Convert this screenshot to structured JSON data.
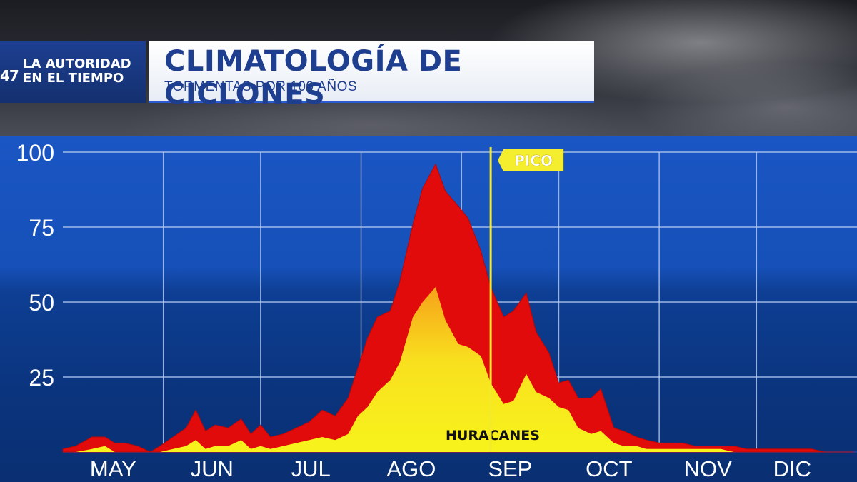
{
  "header": {
    "logo_number": "47",
    "logo_line1": "LA AUTORIDAD",
    "logo_line2": "EN EL TIEMPO",
    "title": "CLIMATOLOGÍA DE CICLONES",
    "subtitle": "TORMENTAS POR 100 AÑOS"
  },
  "colors": {
    "storms": "#e10b0b",
    "hurricanes": "#f7ef1e",
    "peak_line": "#f2ea2a",
    "peak_label_bg": "#f4ee2e",
    "grid": "#b9cdf2",
    "tick_text": "#ffffff"
  },
  "chart_data": {
    "type": "area",
    "title": "CLIMATOLOGÍA DE CICLONES",
    "subtitle": "TORMENTAS POR 100 AÑOS",
    "xlabel": "",
    "ylabel": "",
    "ylim": [
      0,
      100
    ],
    "y_ticks": [
      25,
      50,
      75,
      100
    ],
    "grid": true,
    "x_domain": [
      "05-01",
      "12-31"
    ],
    "month_labels": [
      "MAY",
      "JUN",
      "JUL",
      "AGO",
      "SEP",
      "OCT",
      "NOV",
      "DIC"
    ],
    "month_starts": [
      "05-01",
      "06-01",
      "07-01",
      "08-01",
      "09-01",
      "10-01",
      "11-01",
      "12-01"
    ],
    "series": [
      {
        "name": "",
        "x": [
          "05-01",
          "05-05",
          "05-10",
          "05-14",
          "05-17",
          "05-20",
          "05-24",
          "05-28",
          "05-31",
          "06-04",
          "06-08",
          "06-11",
          "06-14",
          "06-17",
          "06-21",
          "06-25",
          "06-28",
          "07-01",
          "07-04",
          "07-08",
          "07-12",
          "07-16",
          "07-20",
          "07-24",
          "07-28",
          "07-31",
          "08-03",
          "08-06",
          "08-10",
          "08-13",
          "08-17",
          "08-20",
          "08-24",
          "08-27",
          "08-31",
          "09-03",
          "09-07",
          "09-10",
          "09-14",
          "09-17",
          "09-21",
          "09-24",
          "09-28",
          "10-01",
          "10-04",
          "10-07",
          "10-11",
          "10-14",
          "10-18",
          "10-21",
          "10-25",
          "10-28",
          "11-01",
          "11-04",
          "11-08",
          "11-12",
          "11-16",
          "11-20",
          "11-24",
          "11-28",
          "12-02",
          "12-06",
          "12-10",
          "12-14",
          "12-18",
          "12-22",
          "12-26",
          "12-31"
        ],
        "values": [
          1,
          2,
          5,
          5,
          3,
          3,
          2,
          0,
          2,
          5,
          8,
          14,
          7,
          9,
          8,
          11,
          6,
          9,
          5,
          6,
          8,
          10,
          14,
          12,
          18,
          28,
          38,
          45,
          47,
          57,
          76,
          88,
          96,
          87,
          82,
          78,
          67,
          55,
          45,
          47,
          53,
          40,
          33,
          23,
          24,
          18,
          18,
          21,
          8,
          7,
          5,
          4,
          3,
          3,
          3,
          2,
          2,
          2,
          2,
          1,
          1,
          1,
          1,
          1,
          1,
          0,
          0,
          0
        ]
      },
      {
        "name": "HURACANES",
        "x": [
          "05-01",
          "05-05",
          "05-10",
          "05-14",
          "05-17",
          "05-20",
          "05-24",
          "05-28",
          "05-31",
          "06-04",
          "06-08",
          "06-11",
          "06-14",
          "06-17",
          "06-21",
          "06-25",
          "06-28",
          "07-01",
          "07-04",
          "07-08",
          "07-12",
          "07-16",
          "07-20",
          "07-24",
          "07-28",
          "07-31",
          "08-03",
          "08-06",
          "08-10",
          "08-13",
          "08-17",
          "08-20",
          "08-24",
          "08-27",
          "08-31",
          "09-03",
          "09-07",
          "09-10",
          "09-14",
          "09-17",
          "09-21",
          "09-24",
          "09-28",
          "10-01",
          "10-04",
          "10-07",
          "10-11",
          "10-14",
          "10-18",
          "10-21",
          "10-25",
          "10-28",
          "11-01",
          "11-04",
          "11-08",
          "11-12",
          "11-16",
          "11-20",
          "11-24",
          "11-28",
          "12-02",
          "12-06",
          "12-10",
          "12-14",
          "12-18",
          "12-22",
          "12-26",
          "12-31"
        ],
        "values": [
          0,
          0,
          1,
          2,
          0,
          0,
          0,
          0,
          0,
          1,
          2,
          4,
          1,
          2,
          2,
          4,
          1,
          2,
          1,
          2,
          3,
          4,
          5,
          4,
          6,
          12,
          15,
          20,
          24,
          30,
          45,
          50,
          55,
          44,
          36,
          35,
          32,
          23,
          16,
          17,
          26,
          20,
          18,
          15,
          14,
          8,
          6,
          7,
          3,
          2,
          2,
          1,
          1,
          1,
          1,
          1,
          1,
          1,
          0,
          0,
          0,
          0,
          0,
          0,
          0,
          0,
          0,
          0
        ]
      }
    ],
    "annotations": [
      {
        "text": "PICO",
        "x": "09-10"
      }
    ]
  }
}
